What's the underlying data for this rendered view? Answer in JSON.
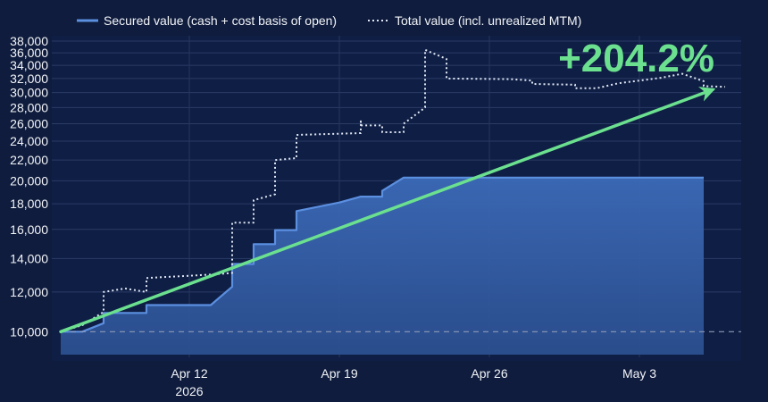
{
  "chart_data": {
    "type": "line",
    "title": "",
    "xlabel": "",
    "ylabel": "",
    "x_ticks": [
      "Apr 12",
      "Apr 19",
      "Apr 26",
      "May 3"
    ],
    "x_year_label": "2026",
    "y_scale": "log",
    "ylim": [
      9000,
      38000
    ],
    "y_ticks": [
      10000,
      12000,
      14000,
      16000,
      18000,
      20000,
      22000,
      24000,
      26000,
      28000,
      30000,
      32000,
      34000,
      36000,
      38000
    ],
    "y_tick_labels": [
      "10,000",
      "12,000",
      "14,000",
      "16,000",
      "18,000",
      "20,000",
      "22,000",
      "24,000",
      "26,000",
      "28,000",
      "30,000",
      "32,000",
      "34,000",
      "36,000",
      "38,000"
    ],
    "baseline": 10000,
    "legend_position": "top",
    "grid": true,
    "series": [
      {
        "name": "Secured value (cash + cost basis of open)",
        "style": "solid-area",
        "color": "#5b8fe0",
        "points": [
          [
            "2026-04-06",
            10000
          ],
          [
            "2026-04-07",
            10000
          ],
          [
            "2026-04-08",
            10400
          ],
          [
            "2026-04-08",
            10900
          ],
          [
            "2026-04-10",
            10900
          ],
          [
            "2026-04-10",
            11300
          ],
          [
            "2026-04-13",
            11300
          ],
          [
            "2026-04-14",
            12300
          ],
          [
            "2026-04-14",
            13650
          ],
          [
            "2026-04-15",
            13650
          ],
          [
            "2026-04-15",
            14950
          ],
          [
            "2026-04-16",
            14950
          ],
          [
            "2026-04-16",
            15950
          ],
          [
            "2026-04-17",
            15950
          ],
          [
            "2026-04-17",
            17400
          ],
          [
            "2026-04-19",
            18100
          ],
          [
            "2026-04-20",
            18600
          ],
          [
            "2026-04-21",
            18600
          ],
          [
            "2026-04-21",
            19100
          ],
          [
            "2026-04-22",
            20300
          ],
          [
            "2026-05-06",
            20300
          ]
        ]
      },
      {
        "name": "Total value (incl. unrealized MTM)",
        "style": "dotted",
        "color": "#dfe6f5",
        "points": [
          [
            "2026-04-06",
            10000
          ],
          [
            "2026-04-07",
            10300
          ],
          [
            "2026-04-08",
            10950
          ],
          [
            "2026-04-08",
            12000
          ],
          [
            "2026-04-09",
            12200
          ],
          [
            "2026-04-10",
            12000
          ],
          [
            "2026-04-10",
            12800
          ],
          [
            "2026-04-13",
            13000
          ],
          [
            "2026-04-14",
            13100
          ],
          [
            "2026-04-14",
            16500
          ],
          [
            "2026-04-15",
            16500
          ],
          [
            "2026-04-15",
            18300
          ],
          [
            "2026-04-16",
            18800
          ],
          [
            "2026-04-16",
            22000
          ],
          [
            "2026-04-17",
            22200
          ],
          [
            "2026-04-17",
            24700
          ],
          [
            "2026-04-20",
            24900
          ],
          [
            "2026-04-20",
            26300
          ],
          [
            "2026-04-20",
            25800
          ],
          [
            "2026-04-21",
            25800
          ],
          [
            "2026-04-21",
            25000
          ],
          [
            "2026-04-22",
            25000
          ],
          [
            "2026-04-22",
            26000
          ],
          [
            "2026-04-23",
            28000
          ],
          [
            "2026-04-23",
            36500
          ],
          [
            "2026-04-24",
            35000
          ],
          [
            "2026-04-24",
            32000
          ],
          [
            "2026-04-27",
            31900
          ],
          [
            "2026-04-28",
            31700
          ],
          [
            "2026-04-28",
            31200
          ],
          [
            "2026-04-30",
            31100
          ],
          [
            "2026-04-30",
            30600
          ],
          [
            "2026-05-01",
            30600
          ],
          [
            "2026-05-02",
            31300
          ],
          [
            "2026-05-04",
            32100
          ],
          [
            "2026-05-05",
            32700
          ],
          [
            "2026-05-06",
            31600
          ],
          [
            "2026-05-06",
            30900
          ],
          [
            "2026-05-07",
            30800
          ]
        ]
      }
    ],
    "trend_arrow": {
      "from": [
        "2026-04-06",
        10000
      ],
      "to": [
        "2026-05-07",
        30400
      ],
      "color": "#6be08f"
    },
    "annotations": [
      {
        "text": "+204.2%",
        "position": "top-right",
        "color": "#6be08f"
      }
    ]
  }
}
